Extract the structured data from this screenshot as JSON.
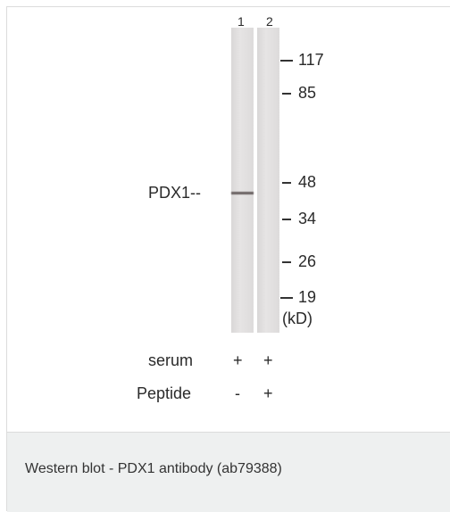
{
  "blot": {
    "lanes": [
      "1",
      "2"
    ],
    "band_label": "PDX1--",
    "markers": [
      "117",
      "85",
      "48",
      "34",
      "26",
      "19"
    ],
    "unit": "(kD)",
    "rows": [
      {
        "label": "serum",
        "signs": [
          "+",
          "+"
        ]
      },
      {
        "label": "Peptide",
        "signs": [
          "-",
          "+"
        ]
      }
    ]
  },
  "caption": "Western blot - PDX1 antibody (ab79388)"
}
